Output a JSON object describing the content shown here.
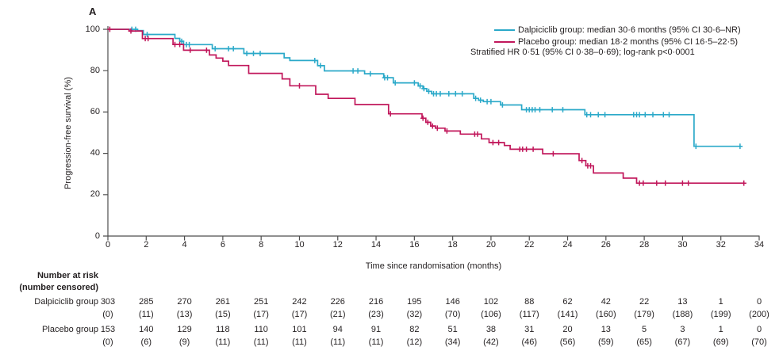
{
  "panel_label": "A",
  "colors": {
    "dalpiciclib": "#2BA9C9",
    "placebo": "#C1175B",
    "axis": "#4d4d4d",
    "text": "#231f20"
  },
  "legend": {
    "items": [
      {
        "label": "Dalpiciclib group: median 30·6 months (95% CI 30·6–NR)",
        "color": "#2BA9C9"
      },
      {
        "label": "Placebo group: median 18·2 months (95% CI 16·5–22·5)",
        "color": "#C1175B"
      }
    ],
    "note": "Stratified HR 0·51 (95% CI 0·38–0·69); log-rank p<0·0001"
  },
  "chart_data": {
    "type": "line",
    "subtype": "kaplan-meier-step",
    "title": "",
    "xlabel": "Time since randomisation (months)",
    "ylabel": "Progression-free survival (%)",
    "xlim": [
      0,
      34
    ],
    "ylim": [
      0,
      100
    ],
    "x_ticks": [
      0,
      2,
      4,
      6,
      8,
      10,
      12,
      14,
      16,
      18,
      20,
      22,
      24,
      26,
      28,
      30,
      32,
      34
    ],
    "y_ticks": [
      0,
      20,
      40,
      60,
      80,
      100
    ],
    "grid": false,
    "legend_position": "top-right",
    "series": [
      {
        "id": "dalpiciclib",
        "name": "Dalpiciclib group",
        "color": "#2BA9C9",
        "median_months": "30·6",
        "ci": "30·6–NR",
        "end_time": 33.05,
        "steps": [
          [
            0,
            100
          ],
          [
            1.55,
            99.4
          ],
          [
            1.85,
            97.5
          ],
          [
            3.5,
            95.6
          ],
          [
            3.75,
            94.2
          ],
          [
            3.95,
            92.6
          ],
          [
            5.45,
            90.6
          ],
          [
            7.1,
            88.3
          ],
          [
            9.2,
            86.2
          ],
          [
            9.5,
            84.9
          ],
          [
            10.95,
            82.4
          ],
          [
            11.3,
            79.9
          ],
          [
            13.4,
            78.5
          ],
          [
            14.4,
            76.6
          ],
          [
            14.9,
            74.1
          ],
          [
            16.2,
            72.6
          ],
          [
            16.45,
            71.3
          ],
          [
            16.65,
            70.0
          ],
          [
            16.9,
            68.8
          ],
          [
            19.1,
            66.6
          ],
          [
            19.35,
            65.7
          ],
          [
            19.6,
            65.0
          ],
          [
            20.5,
            63.4
          ],
          [
            21.6,
            61.1
          ],
          [
            24.9,
            58.7
          ],
          [
            30.6,
            43.4
          ]
        ],
        "censors": [
          [
            1.25,
            100
          ],
          [
            1.45,
            100
          ],
          [
            2.05,
            97.5
          ],
          [
            3.85,
            94.2
          ],
          [
            4.1,
            92.6
          ],
          [
            4.25,
            92.6
          ],
          [
            5.6,
            90.6
          ],
          [
            6.3,
            90.6
          ],
          [
            6.55,
            90.6
          ],
          [
            7.25,
            88.3
          ],
          [
            7.6,
            88.3
          ],
          [
            7.95,
            88.3
          ],
          [
            10.8,
            84.9
          ],
          [
            11.1,
            82.4
          ],
          [
            12.8,
            79.9
          ],
          [
            13.05,
            79.9
          ],
          [
            13.7,
            78.5
          ],
          [
            14.45,
            76.6
          ],
          [
            14.6,
            76.6
          ],
          [
            15.0,
            74.1
          ],
          [
            16.0,
            74.1
          ],
          [
            16.3,
            72.6
          ],
          [
            16.5,
            71.3
          ],
          [
            16.75,
            70.0
          ],
          [
            17.0,
            68.8
          ],
          [
            17.15,
            68.8
          ],
          [
            17.35,
            68.8
          ],
          [
            17.8,
            68.8
          ],
          [
            18.15,
            68.8
          ],
          [
            18.5,
            68.8
          ],
          [
            19.2,
            66.6
          ],
          [
            19.45,
            65.7
          ],
          [
            19.8,
            65.0
          ],
          [
            20.0,
            65.0
          ],
          [
            20.6,
            63.4
          ],
          [
            21.85,
            61.1
          ],
          [
            22.0,
            61.1
          ],
          [
            22.15,
            61.1
          ],
          [
            22.3,
            61.1
          ],
          [
            22.55,
            61.1
          ],
          [
            23.2,
            61.1
          ],
          [
            23.75,
            61.1
          ],
          [
            25.0,
            58.7
          ],
          [
            25.2,
            58.7
          ],
          [
            25.6,
            58.7
          ],
          [
            25.95,
            58.7
          ],
          [
            27.45,
            58.7
          ],
          [
            27.6,
            58.7
          ],
          [
            27.75,
            58.7
          ],
          [
            28.05,
            58.7
          ],
          [
            28.45,
            58.7
          ],
          [
            29.0,
            58.7
          ],
          [
            29.3,
            58.7
          ],
          [
            30.7,
            43.4
          ],
          [
            33.0,
            43.4
          ]
        ]
      },
      {
        "id": "placebo",
        "name": "Placebo group",
        "color": "#C1175B",
        "median_months": "18·2",
        "ci": "16·5–22·5",
        "end_time": 33.2,
        "steps": [
          [
            0,
            100
          ],
          [
            1.1,
            99.2
          ],
          [
            1.8,
            95.5
          ],
          [
            3.4,
            92.7
          ],
          [
            3.95,
            89.9
          ],
          [
            5.3,
            87.6
          ],
          [
            5.65,
            86.1
          ],
          [
            6.0,
            84.6
          ],
          [
            6.3,
            82.5
          ],
          [
            7.35,
            78.7
          ],
          [
            9.1,
            76.0
          ],
          [
            9.5,
            72.7
          ],
          [
            10.85,
            68.6
          ],
          [
            11.5,
            66.6
          ],
          [
            12.9,
            63.6
          ],
          [
            14.65,
            59.1
          ],
          [
            16.4,
            57.0
          ],
          [
            16.6,
            55.0
          ],
          [
            16.85,
            53.2
          ],
          [
            17.1,
            52.2
          ],
          [
            17.6,
            50.8
          ],
          [
            18.4,
            49.3
          ],
          [
            19.5,
            47.0
          ],
          [
            19.9,
            45.2
          ],
          [
            20.7,
            43.8
          ],
          [
            21.0,
            42.0
          ],
          [
            22.7,
            39.8
          ],
          [
            24.6,
            36.5
          ],
          [
            24.95,
            34.0
          ],
          [
            25.35,
            30.5
          ],
          [
            26.9,
            28.0
          ],
          [
            27.6,
            25.6
          ]
        ],
        "censors": [
          [
            0.1,
            100
          ],
          [
            1.2,
            99.2
          ],
          [
            1.95,
            95.5
          ],
          [
            2.1,
            95.5
          ],
          [
            3.5,
            92.7
          ],
          [
            3.75,
            92.7
          ],
          [
            4.3,
            89.9
          ],
          [
            5.15,
            89.9
          ],
          [
            10.0,
            72.7
          ],
          [
            14.75,
            59.1
          ],
          [
            16.45,
            57.0
          ],
          [
            16.7,
            55.0
          ],
          [
            16.95,
            53.2
          ],
          [
            17.2,
            52.2
          ],
          [
            17.7,
            50.8
          ],
          [
            19.15,
            49.3
          ],
          [
            19.3,
            49.3
          ],
          [
            20.1,
            45.2
          ],
          [
            20.4,
            45.2
          ],
          [
            21.5,
            42.0
          ],
          [
            21.65,
            42.0
          ],
          [
            21.85,
            42.0
          ],
          [
            22.2,
            42.0
          ],
          [
            23.25,
            39.8
          ],
          [
            24.75,
            36.5
          ],
          [
            25.05,
            34.0
          ],
          [
            25.2,
            34.0
          ],
          [
            27.75,
            25.6
          ],
          [
            27.95,
            25.6
          ],
          [
            28.65,
            25.6
          ],
          [
            29.1,
            25.6
          ],
          [
            30.0,
            25.6
          ],
          [
            30.3,
            25.6
          ],
          [
            33.2,
            25.6
          ]
        ]
      }
    ]
  },
  "risk_table": {
    "header_line1": "Number at risk",
    "header_line2": "(number censored)",
    "rows": [
      {
        "label": "Dalpiciclib group",
        "at_risk": [
          "303",
          "285",
          "270",
          "261",
          "251",
          "242",
          "226",
          "216",
          "195",
          "146",
          "102",
          "88",
          "62",
          "42",
          "22",
          "13",
          "1",
          "0"
        ],
        "censored": [
          "(0)",
          "(11)",
          "(13)",
          "(15)",
          "(17)",
          "(17)",
          "(21)",
          "(23)",
          "(32)",
          "(70)",
          "(106)",
          "(117)",
          "(141)",
          "(160)",
          "(179)",
          "(188)",
          "(199)",
          "(200)"
        ]
      },
      {
        "label": "Placebo group",
        "at_risk": [
          "153",
          "140",
          "129",
          "118",
          "110",
          "101",
          "94",
          "91",
          "82",
          "51",
          "38",
          "31",
          "20",
          "13",
          "5",
          "3",
          "1",
          "0"
        ],
        "censored": [
          "(0)",
          "(6)",
          "(9)",
          "(11)",
          "(11)",
          "(11)",
          "(11)",
          "(11)",
          "(12)",
          "(34)",
          "(42)",
          "(46)",
          "(56)",
          "(59)",
          "(65)",
          "(67)",
          "(69)",
          "(70)"
        ]
      }
    ]
  }
}
